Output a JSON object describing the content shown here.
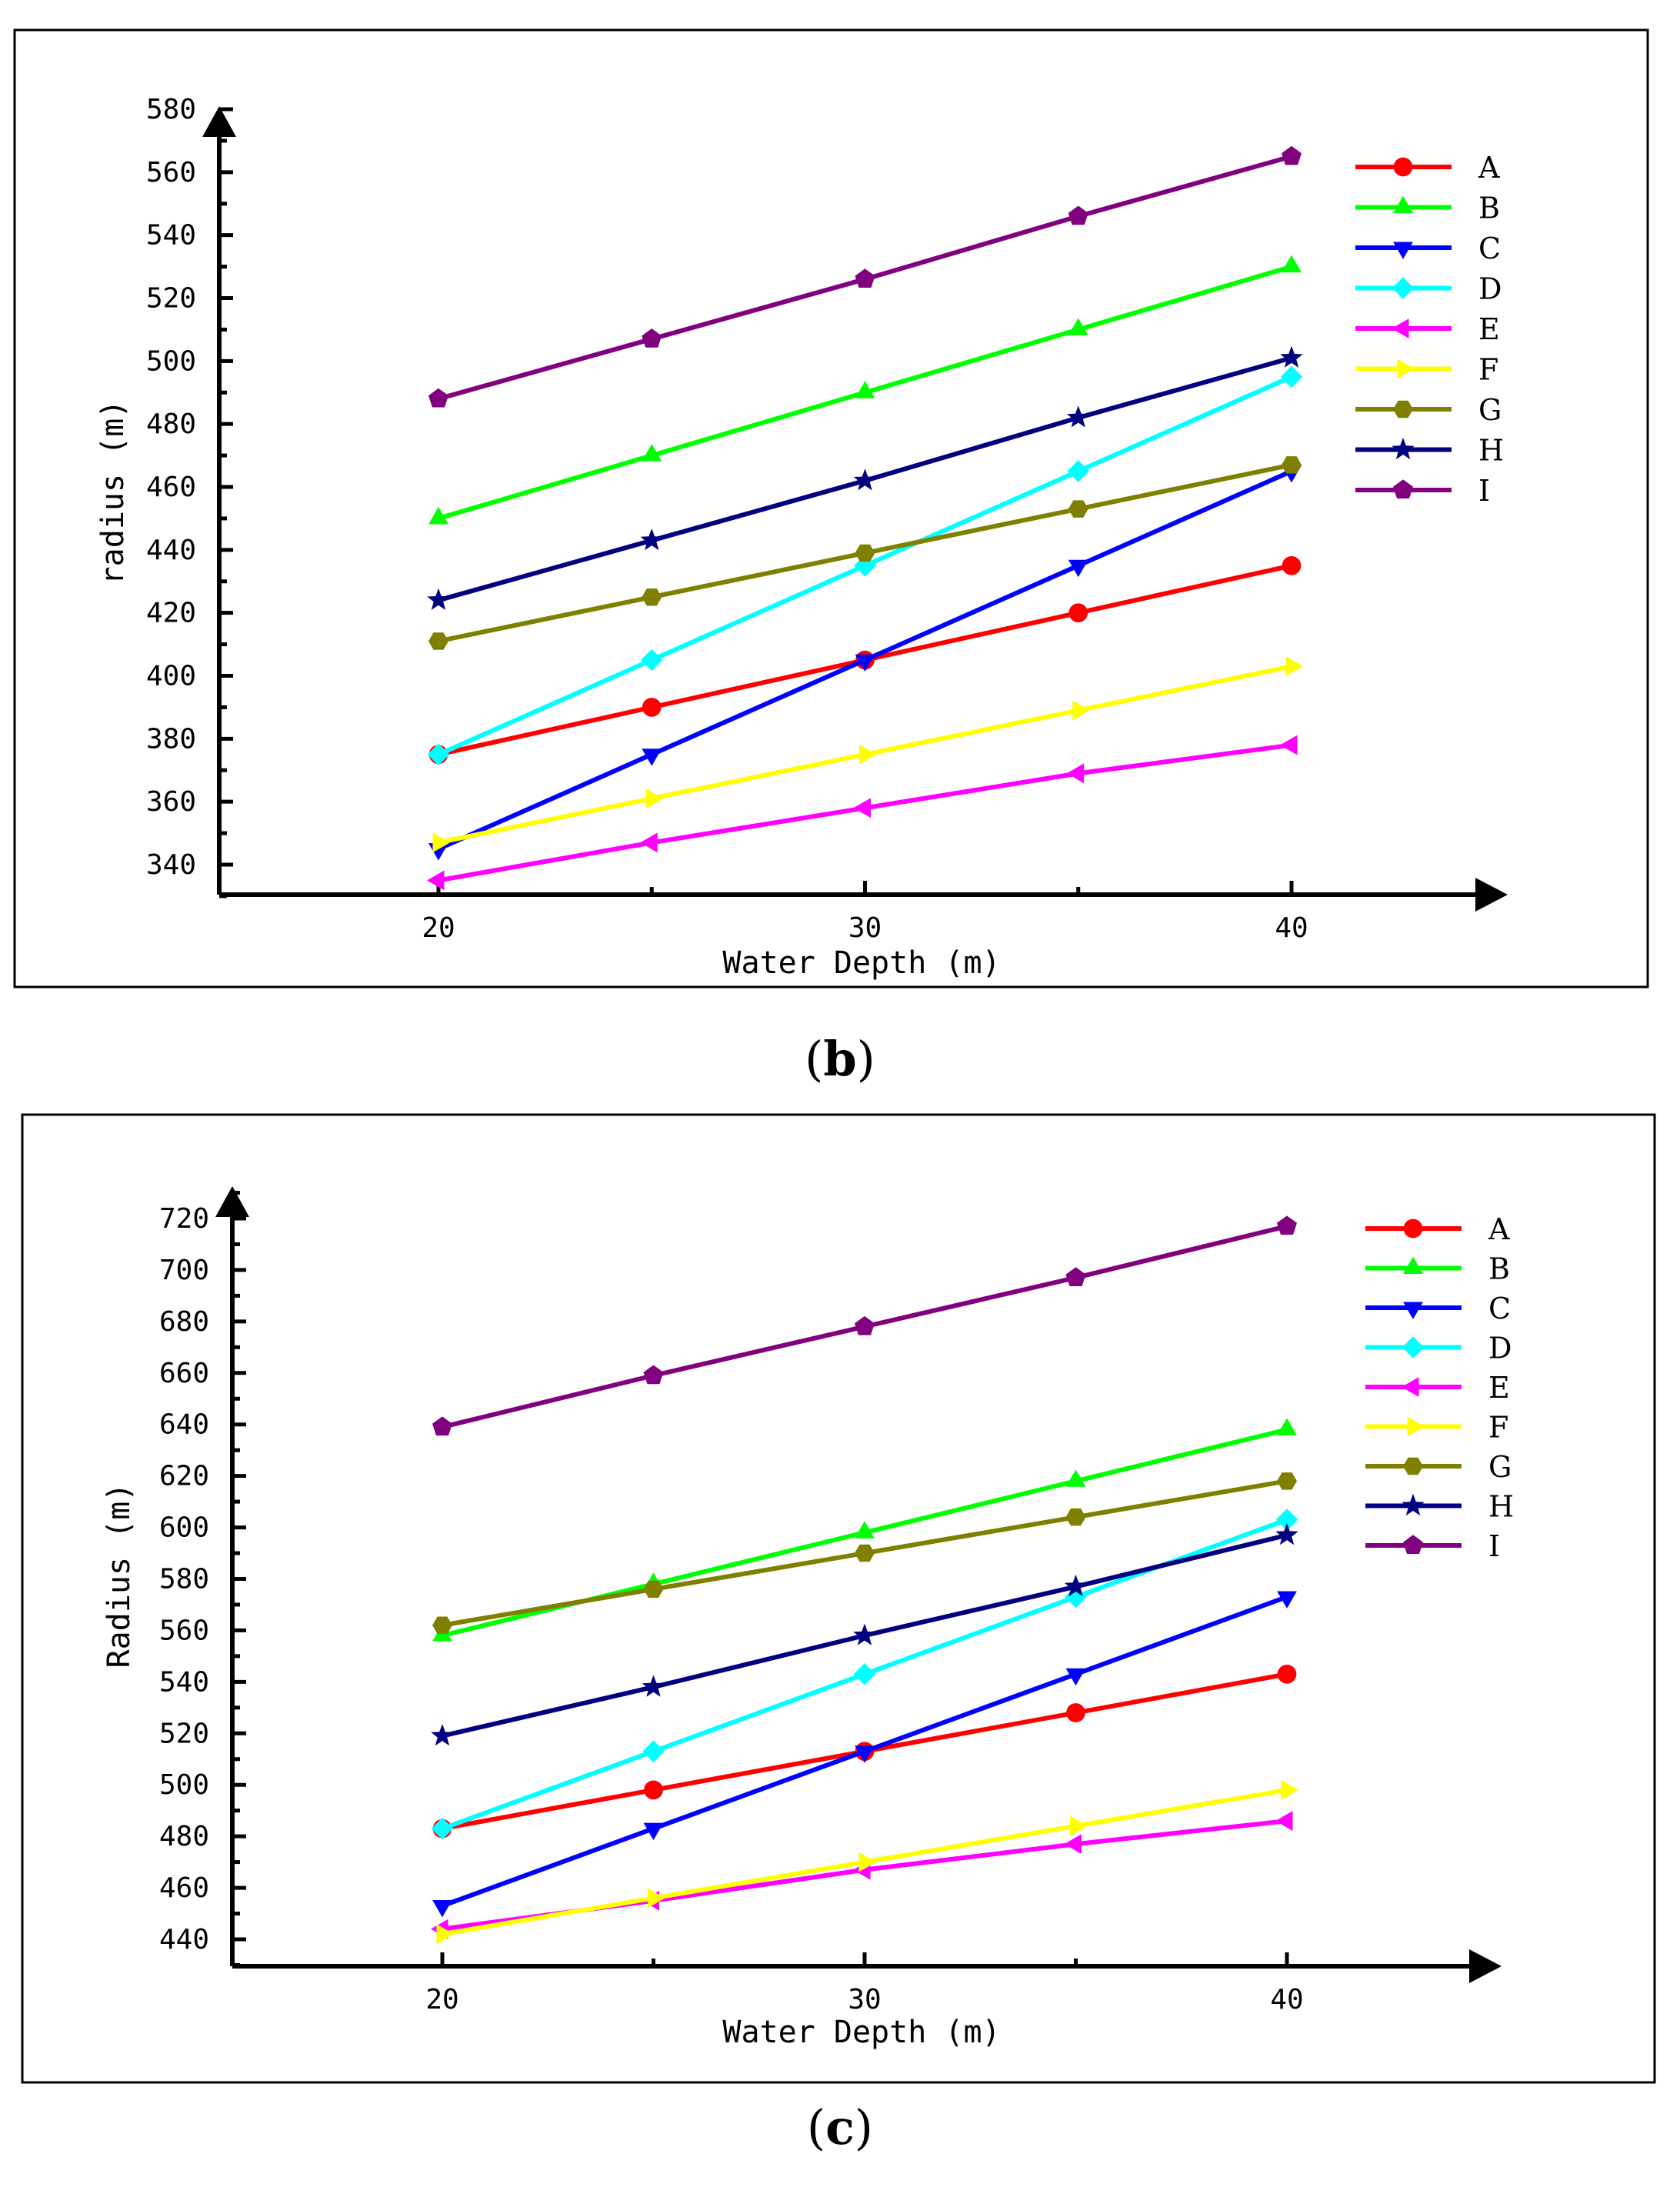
{
  "colors": {
    "A": "#ff0000",
    "B": "#00ff00",
    "C": "#0000ff",
    "D": "#00ffff",
    "E": "#ff00ff",
    "F": "#ffff00",
    "G": "#808000",
    "H": "#000080",
    "I": "#800080"
  },
  "chart_data": [
    {
      "type": "line",
      "caption_open": "(",
      "caption_letter": "b",
      "caption_close": ")",
      "xlabel": "Water Depth (m)",
      "ylabel": "radius (m)",
      "x": [
        20,
        25,
        30,
        35,
        40
      ],
      "xticks": [
        20,
        30,
        40
      ],
      "xlim": [
        15,
        45
      ],
      "ylim": [
        330,
        580
      ],
      "yticks": [
        340,
        360,
        380,
        400,
        420,
        440,
        460,
        480,
        500,
        520,
        540,
        560,
        580
      ],
      "legend_position": "top-right",
      "series": [
        {
          "name": "A",
          "marker": "circle",
          "values": [
            375,
            390,
            405,
            420,
            435
          ]
        },
        {
          "name": "B",
          "marker": "triangle-up",
          "values": [
            450,
            470,
            490,
            510,
            530
          ]
        },
        {
          "name": "C",
          "marker": "triangle-down",
          "values": [
            345,
            375,
            405,
            435,
            465
          ]
        },
        {
          "name": "D",
          "marker": "diamond",
          "values": [
            375,
            405,
            435,
            465,
            495
          ]
        },
        {
          "name": "E",
          "marker": "triangle-left",
          "values": [
            335,
            347,
            358,
            369,
            378
          ]
        },
        {
          "name": "F",
          "marker": "triangle-right",
          "values": [
            347,
            361,
            375,
            389,
            403
          ]
        },
        {
          "name": "G",
          "marker": "hexagon",
          "values": [
            411,
            425,
            439,
            453,
            467
          ]
        },
        {
          "name": "H",
          "marker": "star",
          "values": [
            424,
            443,
            462,
            482,
            501
          ]
        },
        {
          "name": "I",
          "marker": "pentagon",
          "values": [
            488,
            507,
            526,
            546,
            565
          ]
        }
      ]
    },
    {
      "type": "line",
      "caption_open": "(",
      "caption_letter": "c",
      "caption_close": ")",
      "xlabel": "Water Depth (m)",
      "ylabel": "Radius (m)",
      "x": [
        20,
        25,
        30,
        35,
        40
      ],
      "xticks": [
        20,
        30,
        40
      ],
      "xlim": [
        15,
        45
      ],
      "ylim": [
        430,
        730
      ],
      "yticks": [
        440,
        460,
        480,
        500,
        520,
        540,
        560,
        580,
        600,
        620,
        640,
        660,
        680,
        700,
        720
      ],
      "legend_position": "top-right",
      "series": [
        {
          "name": "A",
          "marker": "circle",
          "values": [
            483,
            498,
            513,
            528,
            543
          ]
        },
        {
          "name": "B",
          "marker": "triangle-up",
          "values": [
            558,
            578,
            598,
            618,
            638
          ]
        },
        {
          "name": "C",
          "marker": "triangle-down",
          "values": [
            453,
            483,
            513,
            543,
            573
          ]
        },
        {
          "name": "D",
          "marker": "diamond",
          "values": [
            483,
            513,
            543,
            573,
            603
          ]
        },
        {
          "name": "E",
          "marker": "triangle-left",
          "values": [
            444,
            455,
            467,
            477,
            486
          ]
        },
        {
          "name": "F",
          "marker": "triangle-right",
          "values": [
            442,
            456,
            470,
            484,
            498
          ]
        },
        {
          "name": "G",
          "marker": "hexagon",
          "values": [
            562,
            576,
            590,
            604,
            618
          ]
        },
        {
          "name": "H",
          "marker": "star",
          "values": [
            519,
            538,
            558,
            577,
            597
          ]
        },
        {
          "name": "I",
          "marker": "pentagon",
          "values": [
            639,
            659,
            678,
            697,
            717
          ]
        }
      ]
    }
  ]
}
